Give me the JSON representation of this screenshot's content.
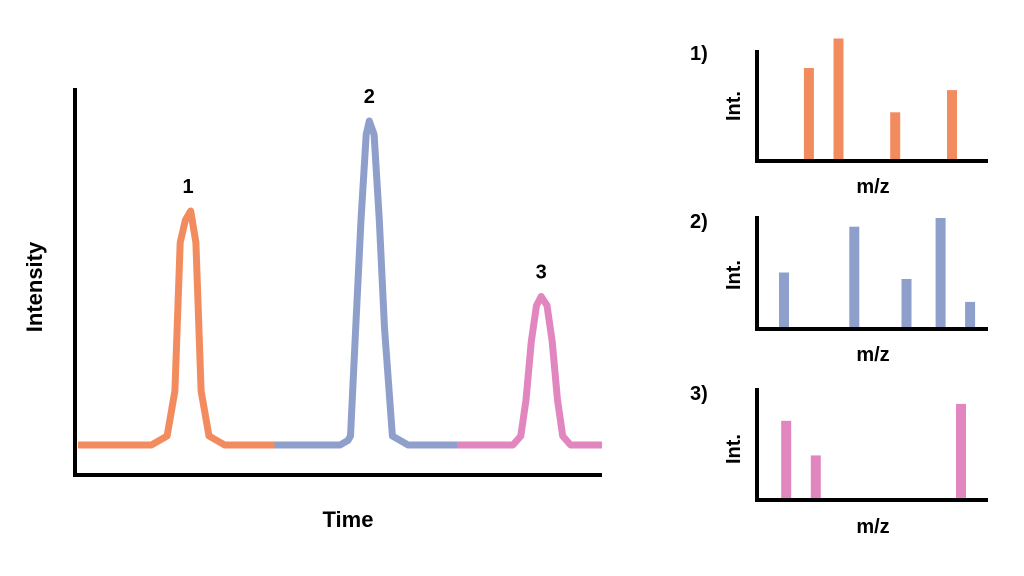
{
  "colors": {
    "peak1": "#F28C5E",
    "peak2": "#8E9FCB",
    "peak3": "#E286C0",
    "axis": "#000000"
  },
  "chart_data": [
    {
      "type": "line",
      "xlabel": "Time",
      "ylabel": "Intensity",
      "grid": false,
      "xlim": [
        0,
        100
      ],
      "ylim": [
        0,
        100
      ],
      "series": [
        {
          "x": [
            0,
            14,
            17,
            18.5,
            19.5,
            20.5,
            21.5,
            22.5,
            23.5,
            25,
            28,
            37.5
          ],
          "y": [
            10,
            10,
            12,
            22,
            55,
            60,
            62,
            55,
            22,
            12,
            10,
            10
          ],
          "color": "peak1"
        },
        {
          "x": [
            37.5,
            50,
            51.5,
            52,
            53,
            54,
            55,
            55.6,
            56.5,
            57.5,
            58.5,
            60,
            63,
            72.5
          ],
          "y": [
            10,
            10,
            11,
            12,
            36,
            60,
            79,
            82,
            79,
            60,
            36,
            12,
            10,
            10
          ],
          "color": "peak2"
        },
        {
          "x": [
            72.5,
            83,
            84.5,
            85.5,
            86.5,
            87.5,
            88.4,
            89.5,
            90.5,
            91.5,
            92.5,
            94,
            100
          ],
          "y": [
            10,
            10,
            12,
            20,
            33,
            41,
            43,
            41,
            33,
            20,
            12,
            10,
            10
          ],
          "color": "peak3"
        }
      ],
      "annotations": [
        {
          "text": "1",
          "x": 21,
          "y": 62
        },
        {
          "text": "2",
          "x": 55.6,
          "y": 82
        },
        {
          "text": "3",
          "x": 88.4,
          "y": 43
        }
      ]
    },
    {
      "type": "bar",
      "label": "1)",
      "xlabel": "m/z",
      "ylabel": "Int.",
      "xlim": [
        0,
        100
      ],
      "ylim": [
        0,
        100
      ],
      "x": [
        22,
        35,
        60,
        85
      ],
      "values": [
        74,
        98,
        38,
        56
      ],
      "color": "peak1"
    },
    {
      "type": "bar",
      "label": "2)",
      "xlabel": "m/z",
      "ylabel": "Int.",
      "xlim": [
        0,
        100
      ],
      "ylim": [
        0,
        100
      ],
      "x": [
        11,
        42,
        65,
        80,
        93
      ],
      "values": [
        50,
        92,
        44,
        100,
        23
      ],
      "color": "peak2"
    },
    {
      "type": "bar",
      "label": "3)",
      "xlabel": "m/z",
      "ylabel": "Int.",
      "xlim": [
        0,
        100
      ],
      "ylim": [
        0,
        100
      ],
      "x": [
        12,
        25,
        89
      ],
      "values": [
        78,
        43,
        95
      ],
      "color": "peak3"
    }
  ]
}
